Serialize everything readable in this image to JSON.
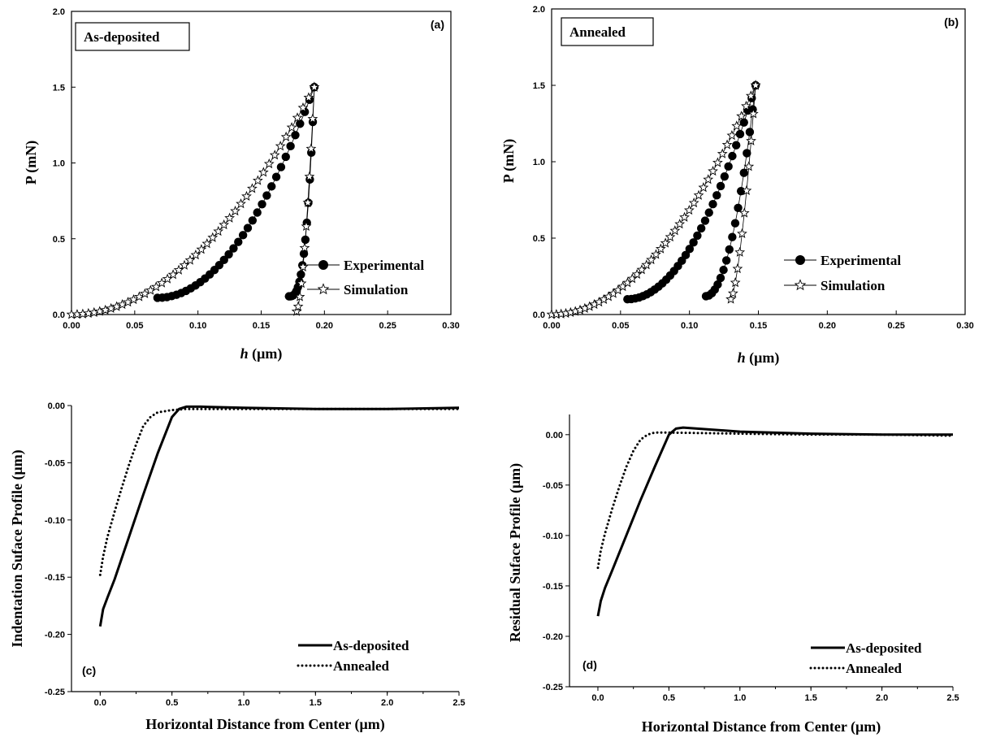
{
  "chart_data": [
    {
      "panel": "(a)",
      "type": "scatter",
      "box_label": "As-deposited",
      "xlabel_italic": "h",
      "xlabel_rest": " (μm)",
      "ylabel": "P (mN)",
      "xlim": [
        0,
        0.3
      ],
      "ylim": [
        0,
        2.0
      ],
      "xticks": [
        0.0,
        0.05,
        0.1,
        0.15,
        0.2,
        0.25,
        0.3
      ],
      "xticklabels": [
        "0.00",
        "0.05",
        "0.10",
        "0.15",
        "0.20",
        "0.25",
        "0.30"
      ],
      "yticks": [
        0.0,
        0.5,
        1.0,
        1.5,
        2.0
      ],
      "yticklabels": [
        "0.0",
        "0.5",
        "1.0",
        "1.5",
        "2.0"
      ],
      "legend_position": "bottom-right",
      "series": [
        {
          "name": "Experimental",
          "marker": "filled-circle",
          "loading": {
            "h0": 0.068,
            "P0": 0.11,
            "h1": 0.192,
            "P1": 1.5,
            "n": 2.0
          },
          "unloading": {
            "h0": 0.172,
            "P0": 0.12,
            "h1": 0.192,
            "P1": 1.5,
            "n": 3.0
          }
        },
        {
          "name": "Simulation",
          "marker": "open-star",
          "loading": {
            "h0": 0.0,
            "P0": 0.0,
            "h1": 0.192,
            "P1": 1.5,
            "n": 2.0
          },
          "unloading": {
            "h0": 0.178,
            "P0": 0.02,
            "h1": 0.192,
            "P1": 1.5,
            "n": 1.6
          }
        }
      ]
    },
    {
      "panel": "(b)",
      "type": "scatter",
      "box_label": "Annealed",
      "xlabel_italic": "h",
      "xlabel_rest": " (μm)",
      "ylabel": "P (mN)",
      "xlim": [
        0,
        0.3
      ],
      "ylim": [
        0,
        2.0
      ],
      "xticks": [
        0.0,
        0.05,
        0.1,
        0.15,
        0.2,
        0.25,
        0.3
      ],
      "xticklabels": [
        "0.00",
        "0.05",
        "0.10",
        "0.15",
        "0.20",
        "0.25",
        "0.30"
      ],
      "yticks": [
        0.0,
        0.5,
        1.0,
        1.5,
        2.0
      ],
      "yticklabels": [
        "0.0",
        "0.5",
        "1.0",
        "1.5",
        "2.0"
      ],
      "legend_position": "bottom-right",
      "series": [
        {
          "name": "Experimental",
          "marker": "filled-circle",
          "loading": {
            "h0": 0.055,
            "P0": 0.1,
            "h1": 0.148,
            "P1": 1.5,
            "n": 2.0
          },
          "unloading": {
            "h0": 0.112,
            "P0": 0.12,
            "h1": 0.148,
            "P1": 1.5,
            "n": 2.0
          }
        },
        {
          "name": "Simulation",
          "marker": "open-star",
          "loading": {
            "h0": 0.0,
            "P0": 0.0,
            "h1": 0.148,
            "P1": 1.5,
            "n": 2.0
          },
          "unloading": {
            "h0": 0.13,
            "P0": 0.1,
            "h1": 0.148,
            "P1": 1.5,
            "n": 1.5
          }
        }
      ]
    },
    {
      "panel": "(c)",
      "type": "line",
      "xlabel": "Horizontal Distance from Center (μm)",
      "ylabel": "Indentation Suface Profile (μm)",
      "xlim": [
        -0.2,
        2.5
      ],
      "ylim": [
        -0.25,
        0.0
      ],
      "xticks": [
        0.0,
        0.5,
        1.0,
        1.5,
        2.0,
        2.5
      ],
      "xticklabels": [
        "0.0",
        "0.5",
        "1.0",
        "1.5",
        "2.0",
        "2.5"
      ],
      "yticks": [
        0.0,
        -0.05,
        -0.1,
        -0.15,
        -0.2,
        -0.25
      ],
      "yticklabels": [
        "0.00",
        "-0.05",
        "-0.10",
        "-0.15",
        "-0.20",
        "-0.25"
      ],
      "legend_position": "bottom-right",
      "series": [
        {
          "name": "As-deposited",
          "style": "solid",
          "x": [
            0.0,
            0.02,
            0.05,
            0.1,
            0.2,
            0.3,
            0.4,
            0.5,
            0.55,
            0.6,
            0.7,
            1.0,
            1.5,
            2.0,
            2.5
          ],
          "y": [
            -0.193,
            -0.178,
            -0.168,
            -0.152,
            -0.115,
            -0.078,
            -0.042,
            -0.01,
            -0.003,
            -0.001,
            -0.001,
            -0.002,
            -0.003,
            -0.003,
            -0.002
          ]
        },
        {
          "name": "Annealed",
          "style": "dotted",
          "x": [
            0.0,
            0.02,
            0.05,
            0.1,
            0.15,
            0.2,
            0.25,
            0.3,
            0.35,
            0.4,
            0.45,
            0.5,
            0.6,
            1.0,
            1.5,
            2.0,
            2.5
          ],
          "y": [
            -0.148,
            -0.132,
            -0.115,
            -0.093,
            -0.072,
            -0.052,
            -0.034,
            -0.018,
            -0.01,
            -0.006,
            -0.005,
            -0.004,
            -0.003,
            -0.003,
            -0.003,
            -0.003,
            -0.003
          ]
        }
      ]
    },
    {
      "panel": "(d)",
      "type": "line",
      "xlabel": "Horizontal Distance from Center (μm)",
      "ylabel": "Residual  Suface Profile (μm)",
      "xlim": [
        -0.2,
        2.5
      ],
      "ylim": [
        -0.25,
        0.02
      ],
      "xticks": [
        0.0,
        0.5,
        1.0,
        1.5,
        2.0,
        2.5
      ],
      "xticklabels": [
        "0.0",
        "0.5",
        "1.0",
        "1.5",
        "2.0",
        "2.5"
      ],
      "yticks": [
        0.0,
        -0.05,
        -0.1,
        -0.15,
        -0.2,
        -0.25
      ],
      "yticklabels": [
        "0.00",
        "-0.05",
        "-0.10",
        "-0.15",
        "-0.20",
        "-0.25"
      ],
      "legend_position": "bottom-right",
      "series": [
        {
          "name": "As-deposited",
          "style": "solid",
          "x": [
            0.0,
            0.02,
            0.05,
            0.1,
            0.2,
            0.3,
            0.4,
            0.5,
            0.55,
            0.6,
            0.8,
            1.0,
            1.5,
            2.0,
            2.5
          ],
          "y": [
            -0.18,
            -0.165,
            -0.152,
            -0.135,
            -0.1,
            -0.065,
            -0.032,
            0.0,
            0.006,
            0.007,
            0.005,
            0.003,
            0.001,
            0.0,
            0.0
          ]
        },
        {
          "name": "Annealed",
          "style": "dotted",
          "x": [
            0.0,
            0.02,
            0.05,
            0.1,
            0.15,
            0.2,
            0.25,
            0.3,
            0.35,
            0.4,
            0.5,
            1.0,
            1.5,
            2.0,
            2.5
          ],
          "y": [
            -0.132,
            -0.115,
            -0.098,
            -0.074,
            -0.052,
            -0.032,
            -0.016,
            -0.005,
            0.0,
            0.002,
            0.002,
            0.001,
            0.0,
            0.0,
            -0.001
          ]
        }
      ]
    }
  ]
}
